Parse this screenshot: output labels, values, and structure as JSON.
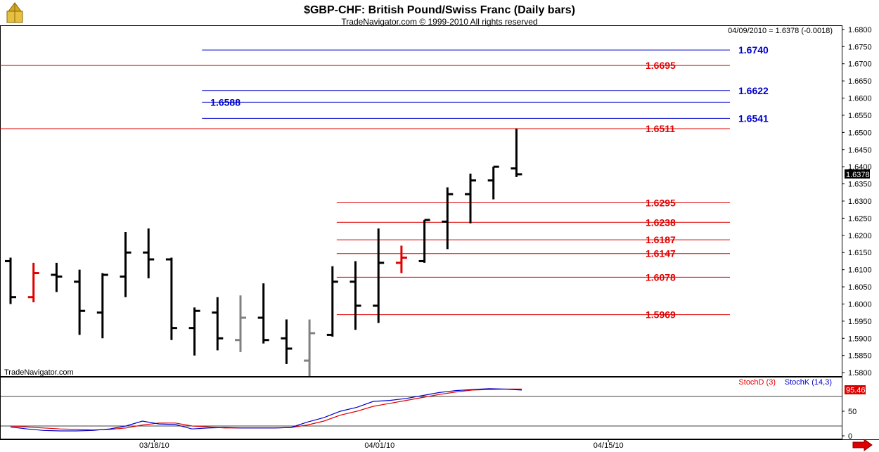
{
  "chart_data": {
    "type": "ohlc",
    "title": "$GBP-CHF:  British Pound/Swiss Franc  (Daily bars)",
    "subtitle": "TradeNavigator.com © 1999-2010 All rights reserved",
    "last_bar_info": "04/09/2010 = 1.6378 (-0.0018)",
    "last_price_tag": "1.6378",
    "watermark": "TradeNavigator.com",
    "ylim": [
      1.579,
      1.681
    ],
    "y_ticks": [
      "1.6800",
      "1.6750",
      "1.6700",
      "1.6650",
      "1.6600",
      "1.6550",
      "1.6500",
      "1.6450",
      "1.6400",
      "1.6350",
      "1.6300",
      "1.6250",
      "1.6200",
      "1.6150",
      "1.6100",
      "1.6050",
      "1.6000",
      "1.5950",
      "1.5900",
      "1.5850",
      "1.5800"
    ],
    "x_labels": [
      {
        "label": "03/18/10",
        "bar": 6.25
      },
      {
        "label": "04/01/10",
        "bar": 16.05
      },
      {
        "label": "04/15/10",
        "bar": 26
      }
    ],
    "bars": [
      {
        "open": 1.6125,
        "high": 1.6135,
        "low": 1.6,
        "close": 1.602,
        "color": "#000000"
      },
      {
        "open": 1.602,
        "high": 1.612,
        "low": 1.6005,
        "close": 1.609,
        "color": "#e00000"
      },
      {
        "open": 1.6085,
        "high": 1.612,
        "low": 1.6035,
        "close": 1.608,
        "color": "#000000"
      },
      {
        "open": 1.6065,
        "high": 1.61,
        "low": 1.591,
        "close": 1.598,
        "color": "#000000"
      },
      {
        "open": 1.5975,
        "high": 1.609,
        "low": 1.59,
        "close": 1.6085,
        "color": "#000000"
      },
      {
        "open": 1.608,
        "high": 1.621,
        "low": 1.602,
        "close": 1.615,
        "color": "#000000"
      },
      {
        "open": 1.615,
        "high": 1.622,
        "low": 1.6075,
        "close": 1.613,
        "color": "#000000"
      },
      {
        "open": 1.613,
        "high": 1.6135,
        "low": 1.5895,
        "close": 1.593,
        "color": "#000000"
      },
      {
        "open": 1.593,
        "high": 1.599,
        "low": 1.585,
        "close": 1.598,
        "color": "#000000"
      },
      {
        "open": 1.5975,
        "high": 1.602,
        "low": 1.5865,
        "close": 1.59,
        "color": "#000000"
      },
      {
        "open": 1.5895,
        "high": 1.6025,
        "low": 1.586,
        "close": 1.596,
        "color": "#808080"
      },
      {
        "open": 1.596,
        "high": 1.606,
        "low": 1.5885,
        "close": 1.5895,
        "color": "#000000"
      },
      {
        "open": 1.59,
        "high": 1.5955,
        "low": 1.5825,
        "close": 1.587,
        "color": "#000000"
      },
      {
        "open": 1.5835,
        "high": 1.5955,
        "low": 1.579,
        "close": 1.5915,
        "color": "#808080"
      },
      {
        "open": 1.591,
        "high": 1.611,
        "low": 1.5905,
        "close": 1.6065,
        "color": "#000000"
      },
      {
        "open": 1.6065,
        "high": 1.6125,
        "low": 1.5925,
        "close": 1.5995,
        "color": "#000000"
      },
      {
        "open": 1.5995,
        "high": 1.622,
        "low": 1.5945,
        "close": 1.612,
        "color": "#000000"
      },
      {
        "open": 1.612,
        "high": 1.617,
        "low": 1.609,
        "close": 1.6135,
        "color": "#e00000"
      },
      {
        "open": 1.6125,
        "high": 1.6245,
        "low": 1.612,
        "close": 1.6245,
        "color": "#000000"
      },
      {
        "open": 1.624,
        "high": 1.634,
        "low": 1.616,
        "close": 1.632,
        "color": "#000000"
      },
      {
        "open": 1.632,
        "high": 1.638,
        "low": 1.6235,
        "close": 1.636,
        "color": "#000000"
      },
      {
        "open": 1.636,
        "high": 1.64,
        "low": 1.6305,
        "close": 1.64,
        "color": "#000000"
      },
      {
        "open": 1.6395,
        "high": 1.6511,
        "low": 1.637,
        "close": 1.6378,
        "color": "#000000"
      }
    ],
    "levels": [
      {
        "value": 1.674,
        "label": "1.6740",
        "color": "#0000cc",
        "x_from": 0.24,
        "label_side": "right"
      },
      {
        "value": 1.6695,
        "label": "1.6695",
        "color": "#e00000",
        "x_from": 0.0,
        "label_side": "right"
      },
      {
        "value": 1.6622,
        "label": "1.6622",
        "color": "#0000cc",
        "x_from": 0.24,
        "label_side": "right"
      },
      {
        "value": 1.6588,
        "label": "1.6588",
        "color": "#0000cc",
        "x_from": 0.24,
        "label_side": "left"
      },
      {
        "value": 1.6541,
        "label": "1.6541",
        "color": "#0000cc",
        "x_from": 0.24,
        "label_side": "right"
      },
      {
        "value": 1.6511,
        "label": "1.6511",
        "color": "#e00000",
        "x_from": 0.0,
        "label_side": "right"
      },
      {
        "value": 1.6295,
        "label": "1.6295",
        "color": "#e00000",
        "x_from": 0.4,
        "label_side": "right"
      },
      {
        "value": 1.6238,
        "label": "1.6238",
        "color": "#e00000",
        "x_from": 0.4,
        "label_side": "right"
      },
      {
        "value": 1.6187,
        "label": "1.6187",
        "color": "#e00000",
        "x_from": 0.4,
        "label_side": "right"
      },
      {
        "value": 1.6147,
        "label": "1.6147",
        "color": "#e00000",
        "x_from": 0.4,
        "label_side": "right"
      },
      {
        "value": 1.6078,
        "label": "1.6078",
        "color": "#e00000",
        "x_from": 0.4,
        "label_side": "right"
      },
      {
        "value": 1.5969,
        "label": "1.5969",
        "color": "#e00000",
        "x_from": 0.4,
        "label_side": "right"
      }
    ],
    "stochastic": {
      "legend_d": "StochD (3)",
      "legend_k": "StochK (14,3)",
      "last_value": "95.46",
      "ylim": [
        0,
        100
      ],
      "y_ticks": [
        "50",
        "0"
      ],
      "ref_lines": [
        80,
        20
      ],
      "series_k": [
        18,
        14,
        11,
        10,
        10,
        11,
        14,
        20,
        30,
        24,
        23,
        14,
        16,
        17,
        16,
        16,
        16,
        17,
        28,
        37,
        50,
        58,
        70,
        72,
        76,
        82,
        88,
        92,
        94,
        96,
        95,
        93
      ],
      "series_d": [
        20,
        18,
        16,
        14,
        13,
        12,
        13,
        16,
        22,
        26,
        26,
        20,
        18,
        16,
        16,
        16,
        16,
        17,
        22,
        30,
        42,
        50,
        60,
        66,
        72,
        78,
        84,
        89,
        93,
        94,
        95,
        95
      ],
      "color_k": "#0000cc",
      "color_d": "#e00000"
    }
  }
}
